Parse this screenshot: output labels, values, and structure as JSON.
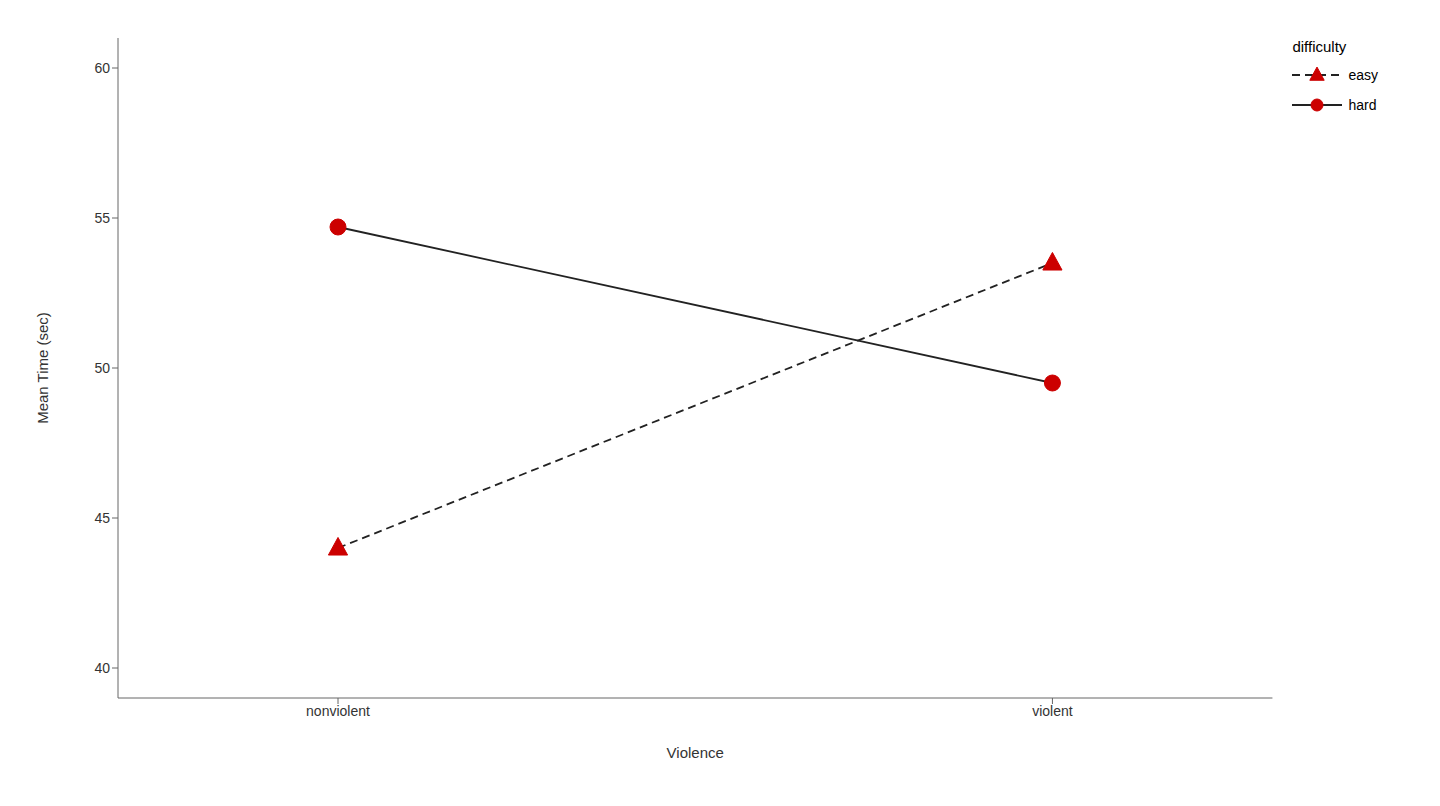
{
  "chart_data": {
    "type": "line",
    "x_label": "Violence",
    "y_label": "Mean Time (sec)",
    "categories": [
      "nonviolent",
      "violent"
    ],
    "legend_title": "difficulty",
    "legend": "upper right",
    "grid": false,
    "series": [
      {
        "name": "easy",
        "color": "#CC0000",
        "marker": "triangle",
        "line_style": "dashed",
        "values": [
          44.0,
          53.5
        ]
      },
      {
        "name": "hard",
        "color": "#CC0000",
        "marker": "circle",
        "line_style": "solid",
        "values": [
          54.7,
          49.5
        ]
      }
    ],
    "ylim": [
      39,
      61
    ],
    "yticks": [
      40,
      45,
      50,
      55,
      60
    ]
  }
}
